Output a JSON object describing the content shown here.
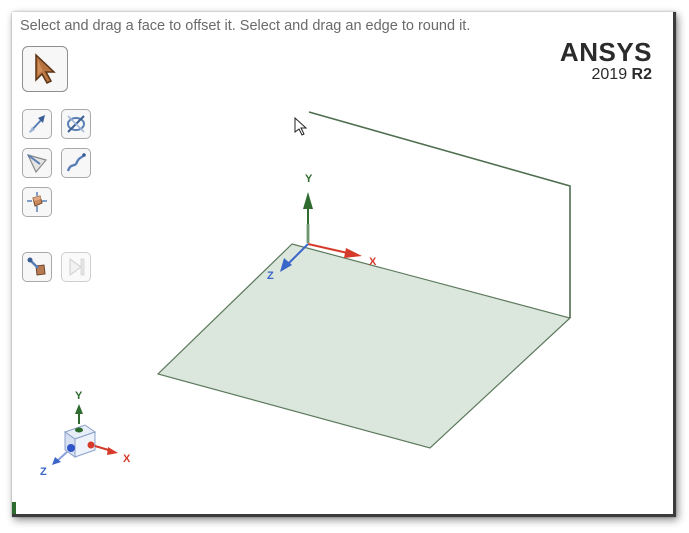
{
  "hint": {
    "text": "Select and drag a face to offset it. Select and drag an edge to round it."
  },
  "brand": {
    "name": "ANSYS",
    "version_year": "2019",
    "version_release": "R2"
  },
  "toolbar": {
    "select_tool": "select-arrow-icon",
    "tools": [
      "pull-icon",
      "move-icon",
      "fill-icon",
      "combine-icon",
      "blend-icon",
      "play-icon"
    ]
  },
  "triad_main": {
    "x": "X",
    "y": "Y",
    "z": "Z"
  },
  "triad_corner": {
    "x": "X",
    "y": "Y",
    "z": "Z"
  },
  "colors": {
    "face_fill": "#dbe6dc",
    "edge": "#4f6e4f",
    "axis_x": "#d63a2a",
    "axis_y": "#2e6b2e",
    "axis_z": "#3a66c9"
  }
}
